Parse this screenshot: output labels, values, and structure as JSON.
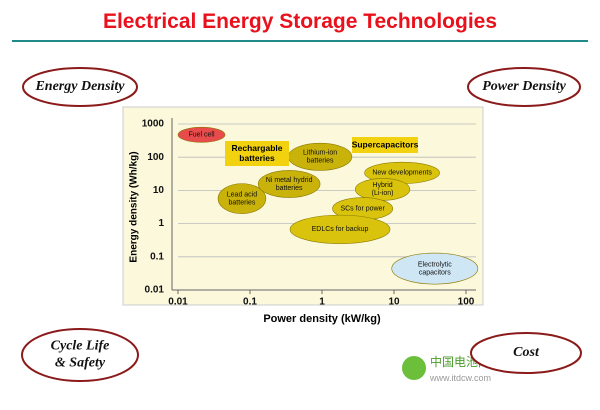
{
  "slide": {
    "title": "Electrical Energy Storage Technologies",
    "corners": [
      "Energy Density",
      "Power Density",
      [
        "Cycle Life",
        "& Safety"
      ],
      "Cost"
    ],
    "watermark": [
      "中国电池网",
      "www.itdcw.com"
    ]
  },
  "chart_data": {
    "type": "ragone",
    "x_label": "Power density (kW/kg)",
    "y_label": "Energy density (Wh/kg)",
    "log_x": true,
    "log_y": true,
    "grid": true,
    "xlim": [
      0.01,
      100
    ],
    "ylim": [
      0.01,
      1000
    ],
    "xticks": [
      0.01,
      0.1,
      1,
      10,
      100
    ],
    "yticks": [
      0.01,
      0.1,
      1,
      10,
      100,
      1000
    ],
    "annotations": [
      [
        "Rechargable",
        "batteries"
      ],
      [
        "Supercapacitors"
      ]
    ],
    "regions": [
      {
        "name": [
          "Fuel cell"
        ],
        "color": "#e84b4b",
        "x": [
          0.01,
          0.045
        ],
        "y": [
          280,
          800
        ]
      },
      {
        "name": [
          "Lead acid",
          "batteries"
        ],
        "color": "#c9b20a",
        "x": [
          0.036,
          0.166
        ],
        "y": [
          2,
          16
        ]
      },
      {
        "name": [
          "Ni metal hydrid",
          "batteries"
        ],
        "color": "#c9b20a",
        "x": [
          0.13,
          0.94
        ],
        "y": [
          6.1,
          40
        ]
      },
      {
        "name": [
          "Lithium-ion",
          "batteries"
        ],
        "color": "#c9b20a",
        "x": [
          0.34,
          2.6
        ],
        "y": [
          40,
          265
        ]
      },
      {
        "name": [
          "New developments"
        ],
        "color": "#d9c30c",
        "x": [
          3.9,
          43
        ],
        "y": [
          16,
          71
        ]
      },
      {
        "name": [
          "Hybrid",
          "(Li-ion)"
        ],
        "color": "#d9c30c",
        "x": [
          2.9,
          16.6
        ],
        "y": [
          5,
          23
        ]
      },
      {
        "name": [
          "SCs for power"
        ],
        "color": "#d9c30c",
        "x": [
          1.4,
          9.6
        ],
        "y": [
          1.3,
          6.1
        ]
      },
      {
        "name": [
          "EDLCs for backup"
        ],
        "color": "#d9c30c",
        "x": [
          0.36,
          8.8
        ],
        "y": [
          0.25,
          1.8
        ]
      },
      {
        "name": [
          "Electrolytic",
          "capacitors"
        ],
        "color": "#cfe6f5",
        "x": [
          9.3,
          146
        ],
        "y": [
          0.015,
          0.13
        ]
      }
    ]
  }
}
